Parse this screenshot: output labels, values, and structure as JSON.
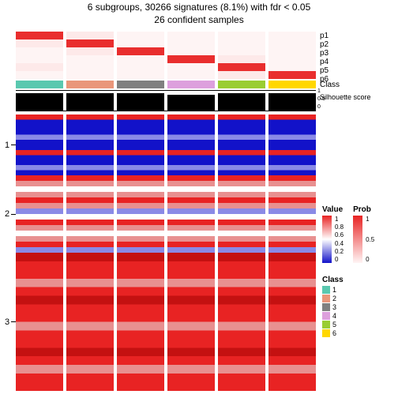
{
  "title": "6 subgroups, 30266 signatures (8.1%) with fdr < 0.05",
  "subtitle": "26 confident samples",
  "title_fontsize": 12,
  "prob_labels": [
    "p1",
    "p2",
    "p3",
    "p4",
    "p5",
    "p6"
  ],
  "class_annotation_label": "Class",
  "silhouette_label": "Silhouette\nscore",
  "silhouette_scale": [
    "1",
    "0.5",
    "0"
  ],
  "row_group_labels": [
    "1",
    "2",
    "3"
  ],
  "row_group_heights": [
    0.22,
    0.28,
    0.5
  ],
  "class_colors": [
    "#5AC8AF",
    "#E9967A",
    "#808080",
    "#DDA0DD",
    "#9ACD32",
    "#FFD700"
  ],
  "prob_matrix": [
    [
      0.95,
      0.1,
      0.05,
      0.05,
      0.05,
      0.05
    ],
    [
      0.1,
      0.95,
      0.05,
      0.05,
      0.05,
      0.05
    ],
    [
      0.05,
      0.1,
      0.95,
      0.05,
      0.05,
      0.05
    ],
    [
      0.05,
      0.05,
      0.05,
      0.95,
      0.1,
      0.05
    ],
    [
      0.1,
      0.05,
      0.05,
      0.05,
      0.95,
      0.05
    ],
    [
      0.05,
      0.05,
      0.05,
      0.05,
      0.1,
      0.95
    ]
  ],
  "silhouette_heights": [
    0.88,
    0.9,
    0.88,
    0.82,
    0.9,
    0.88
  ],
  "block_colors": {
    "blue": "#1212c9",
    "light_blue": "#8a8ae6",
    "white": "#ffffff",
    "light_red": "#e89090",
    "red": "#e82323",
    "dark_red": "#c41111"
  },
  "heatmap_blocks": [
    {
      "frac": 0.22,
      "style": "blue_with_red"
    },
    {
      "frac": 0.28,
      "style": "mixed"
    },
    {
      "frac": 0.5,
      "style": "red_dense"
    }
  ],
  "value_legend": {
    "title": "Value",
    "gradient": [
      "#e82323",
      "#ffffff",
      "#1212c9"
    ],
    "ticks": [
      "1",
      "0.8",
      "0.6",
      "0.4",
      "0.2",
      "0"
    ]
  },
  "prob_legend": {
    "title": "Prob",
    "gradient": [
      "#e82323",
      "#fff5f5"
    ],
    "ticks": [
      "1",
      "0.5",
      "0"
    ]
  },
  "class_legend": {
    "title": "Class",
    "items": [
      "1",
      "2",
      "3",
      "4",
      "5",
      "6"
    ]
  },
  "background_color": "#ffffff"
}
